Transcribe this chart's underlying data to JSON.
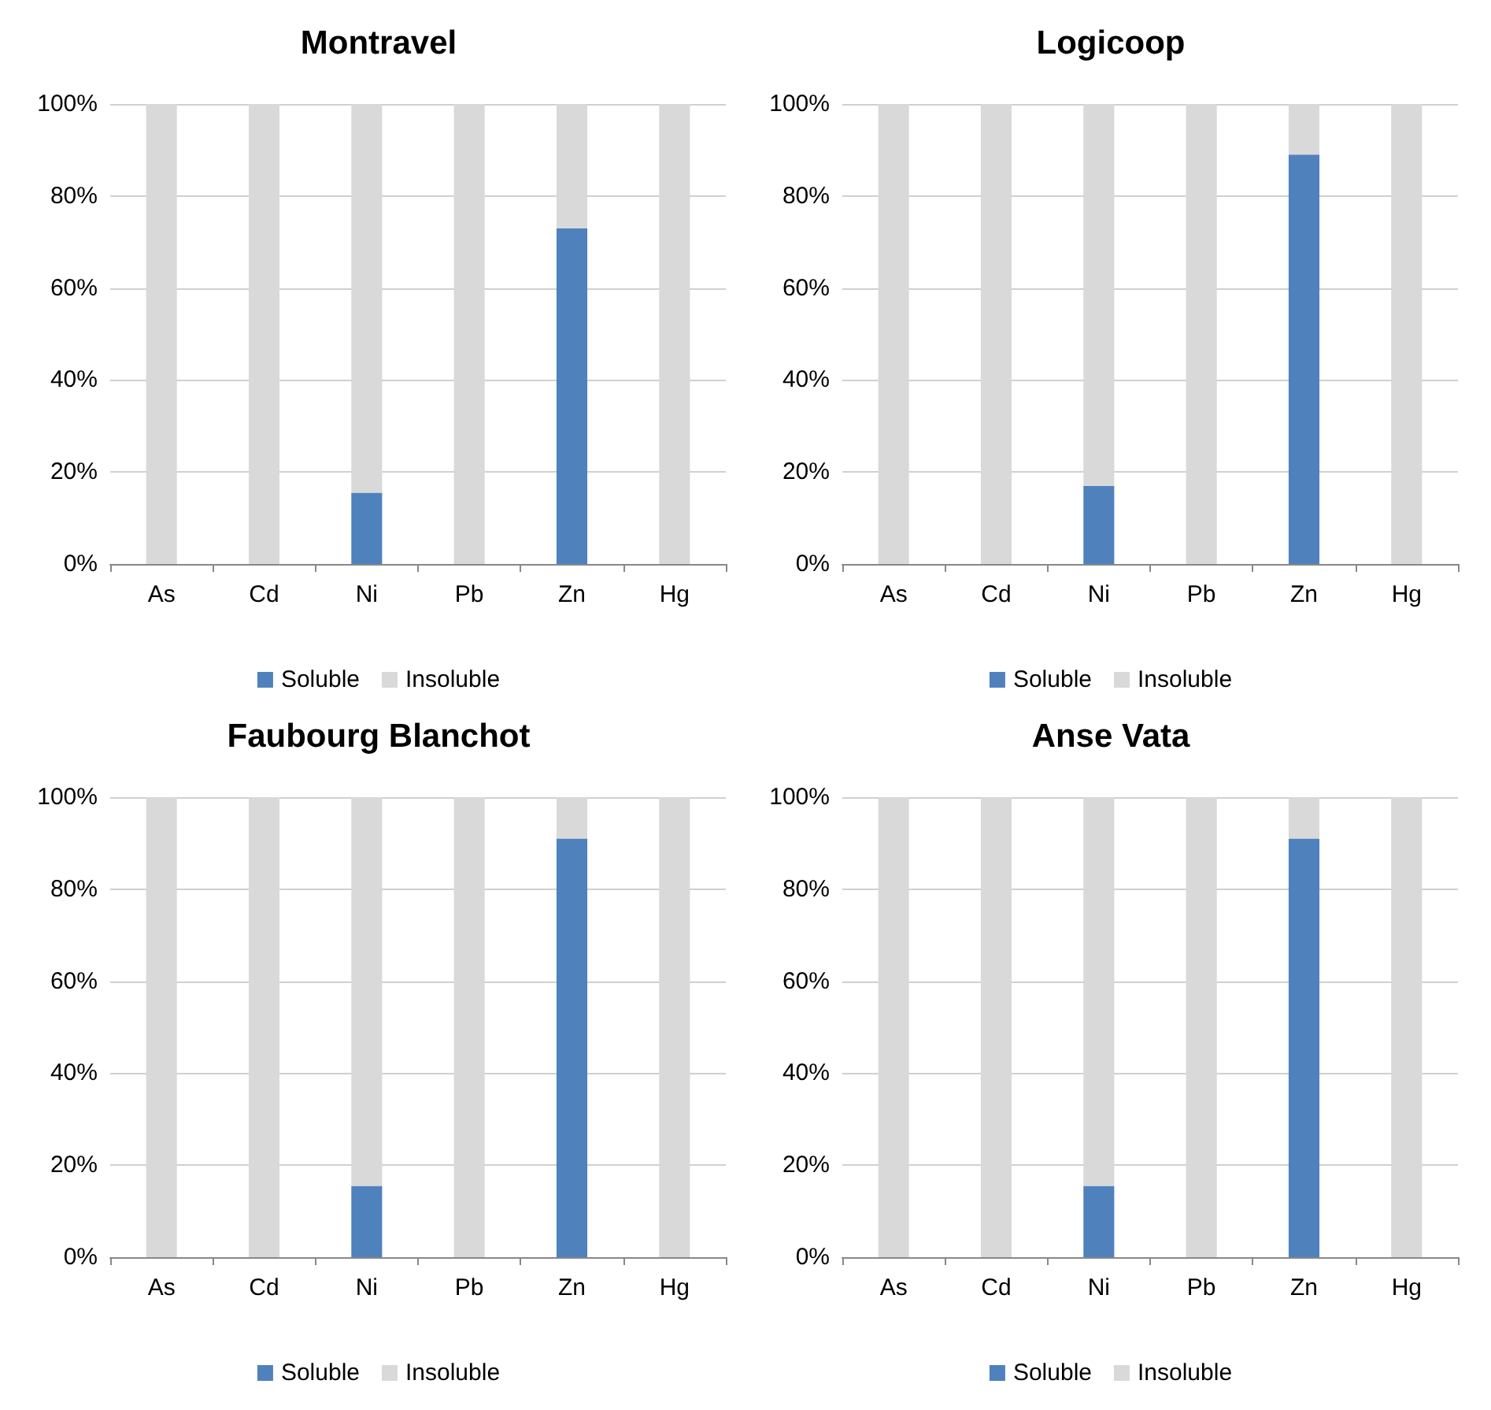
{
  "chart_data": [
    {
      "type": "bar",
      "title": "Montravel",
      "categories": [
        "As",
        "Cd",
        "Ni",
        "Pb",
        "Zn",
        "Hg"
      ],
      "stacked": true,
      "series": [
        {
          "name": "Soluble",
          "color": "#4f81bd",
          "values": [
            0,
            0,
            15.5,
            0,
            73,
            0
          ]
        },
        {
          "name": "Insoluble",
          "color": "#d9d9d9",
          "values": [
            100,
            100,
            84.5,
            100,
            27,
            100
          ]
        }
      ],
      "ylim": [
        0,
        100
      ],
      "yticks": [
        {
          "value": 0,
          "label": "0%"
        },
        {
          "value": 20,
          "label": "20%"
        },
        {
          "value": 40,
          "label": "40%"
        },
        {
          "value": 60,
          "label": "60%"
        },
        {
          "value": 80,
          "label": "80%"
        },
        {
          "value": 100,
          "label": "100%"
        }
      ],
      "grid": "y",
      "legend": "bottom"
    },
    {
      "type": "bar",
      "title": "Logicoop",
      "categories": [
        "As",
        "Cd",
        "Ni",
        "Pb",
        "Zn",
        "Hg"
      ],
      "stacked": true,
      "series": [
        {
          "name": "Soluble",
          "color": "#4f81bd",
          "values": [
            0,
            0,
            17,
            0,
            89,
            0
          ]
        },
        {
          "name": "Insoluble",
          "color": "#d9d9d9",
          "values": [
            100,
            100,
            83,
            100,
            11,
            100
          ]
        }
      ],
      "ylim": [
        0,
        100
      ],
      "yticks": [
        {
          "value": 0,
          "label": "0%"
        },
        {
          "value": 20,
          "label": "20%"
        },
        {
          "value": 40,
          "label": "40%"
        },
        {
          "value": 60,
          "label": "60%"
        },
        {
          "value": 80,
          "label": "80%"
        },
        {
          "value": 100,
          "label": "100%"
        }
      ],
      "grid": "y",
      "legend": "bottom"
    },
    {
      "type": "bar",
      "title": "Faubourg Blanchot",
      "categories": [
        "As",
        "Cd",
        "Ni",
        "Pb",
        "Zn",
        "Hg"
      ],
      "stacked": true,
      "series": [
        {
          "name": "Soluble",
          "color": "#4f81bd",
          "values": [
            0,
            0,
            15.5,
            0,
            91,
            0
          ]
        },
        {
          "name": "Insoluble",
          "color": "#d9d9d9",
          "values": [
            100,
            100,
            84.5,
            100,
            9,
            100
          ]
        }
      ],
      "ylim": [
        0,
        100
      ],
      "yticks": [
        {
          "value": 0,
          "label": "0%"
        },
        {
          "value": 20,
          "label": "20%"
        },
        {
          "value": 40,
          "label": "40%"
        },
        {
          "value": 60,
          "label": "60%"
        },
        {
          "value": 80,
          "label": "80%"
        },
        {
          "value": 100,
          "label": "100%"
        }
      ],
      "grid": "y",
      "legend": "bottom"
    },
    {
      "type": "bar",
      "title": "Anse Vata",
      "categories": [
        "As",
        "Cd",
        "Ni",
        "Pb",
        "Zn",
        "Hg"
      ],
      "stacked": true,
      "series": [
        {
          "name": "Soluble",
          "color": "#4f81bd",
          "values": [
            0,
            0,
            15.5,
            0,
            91,
            0
          ]
        },
        {
          "name": "Insoluble",
          "color": "#d9d9d9",
          "values": [
            100,
            100,
            84.5,
            100,
            9,
            100
          ]
        }
      ],
      "ylim": [
        0,
        100
      ],
      "yticks": [
        {
          "value": 0,
          "label": "0%"
        },
        {
          "value": 20,
          "label": "20%"
        },
        {
          "value": 40,
          "label": "40%"
        },
        {
          "value": 60,
          "label": "60%"
        },
        {
          "value": 80,
          "label": "80%"
        },
        {
          "value": 100,
          "label": "100%"
        }
      ],
      "grid": "y",
      "legend": "bottom"
    }
  ]
}
